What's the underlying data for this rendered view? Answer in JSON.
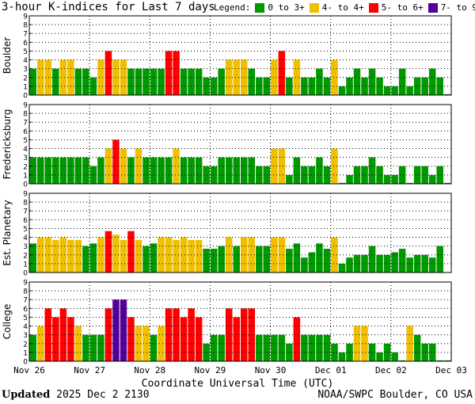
{
  "title": "3-hour K-indices for Last 7 days",
  "legend": {
    "label": "Legend:",
    "items": [
      {
        "text": "0 to 3+",
        "color": "#009900"
      },
      {
        "text": "4- to 4+",
        "color": "#f0c000"
      },
      {
        "text": "5- to 6+",
        "color": "#ff0000"
      },
      {
        "text": "7- to 9",
        "color": "#550099"
      }
    ]
  },
  "footer": {
    "updated_label": "Updated",
    "updated_value": "2025 Dec  2 2130",
    "source": "NOAA/SWPC Boulder, CO USA"
  },
  "chart_data": {
    "type": "bar",
    "xlabel": "Coordinate Universal Time (UTC)",
    "x_ticks": [
      "Nov 26",
      "Nov 27",
      "Nov 28",
      "Nov 29",
      "Nov 30",
      "Dec 01",
      "Dec 02",
      "Dec 03"
    ],
    "y_ticks": [
      "0",
      "1",
      "2",
      "3",
      "4",
      "5",
      "6",
      "7",
      "8",
      "9"
    ],
    "ylim": [
      0,
      9
    ],
    "bins_per_day": 8,
    "color_scale": [
      {
        "range": "0 to 3+",
        "color": "#009900"
      },
      {
        "range": "4- to 4+",
        "color": "#f0c000"
      },
      {
        "range": "5- to 6+",
        "color": "#ff0000"
      },
      {
        "range": "7- to 9",
        "color": "#550099"
      }
    ],
    "grid": true,
    "series": [
      {
        "name": "Boulder",
        "values": [
          3,
          4,
          4,
          3,
          4,
          4,
          3,
          3,
          2,
          4,
          5,
          4,
          4,
          3,
          3,
          3,
          3,
          3,
          5,
          5,
          3,
          3,
          3,
          2,
          2,
          3,
          4,
          4,
          4,
          3,
          2,
          2,
          4,
          5,
          2,
          4,
          2,
          2,
          3,
          2,
          4,
          1,
          2,
          3,
          2,
          3,
          2,
          1,
          1,
          3,
          1,
          2,
          2,
          3,
          2,
          0.1
        ]
      },
      {
        "name": "Fredericksburg",
        "values": [
          3,
          3,
          3,
          3,
          3,
          3,
          3,
          3,
          2,
          3,
          4,
          5,
          4,
          3,
          4,
          3,
          3,
          3,
          3,
          4,
          3,
          3,
          3,
          2,
          2,
          3,
          3,
          3,
          3,
          3,
          2,
          2,
          4,
          4,
          1,
          3,
          2,
          2,
          3,
          2,
          4,
          0.1,
          1,
          2,
          2,
          3,
          2,
          1,
          1,
          2,
          0.1,
          2,
          2,
          1,
          2,
          0.1
        ]
      },
      {
        "name": "Est. Planetary",
        "values": [
          3.3,
          4,
          4,
          3.7,
          4,
          3.7,
          3.7,
          3,
          3.3,
          4,
          4.7,
          4.3,
          3.7,
          4.7,
          3.7,
          3,
          3.3,
          4,
          4,
          3.7,
          4,
          3.7,
          3.7,
          2.7,
          2.7,
          3,
          4,
          3,
          4,
          4,
          3,
          3,
          4,
          4,
          2.7,
          3.3,
          1.7,
          2.3,
          3.3,
          2.7,
          4,
          1,
          1.7,
          2,
          2,
          3,
          2,
          2,
          2.3,
          2.7,
          1.7,
          2,
          2,
          1.7,
          3,
          0
        ]
      },
      {
        "name": "College",
        "values": [
          3,
          4,
          6,
          5,
          6,
          5,
          4,
          3,
          3,
          3,
          6,
          7,
          7,
          5,
          4,
          4,
          3,
          4,
          6,
          6,
          5,
          6,
          5,
          2,
          3,
          3,
          6,
          5,
          6,
          6,
          3,
          3,
          3,
          3,
          2,
          5,
          3,
          3,
          3,
          3,
          2,
          1,
          2,
          4,
          4,
          2,
          1,
          2,
          1,
          0.1,
          4,
          3,
          2,
          2,
          0.1,
          0.1
        ]
      }
    ]
  }
}
